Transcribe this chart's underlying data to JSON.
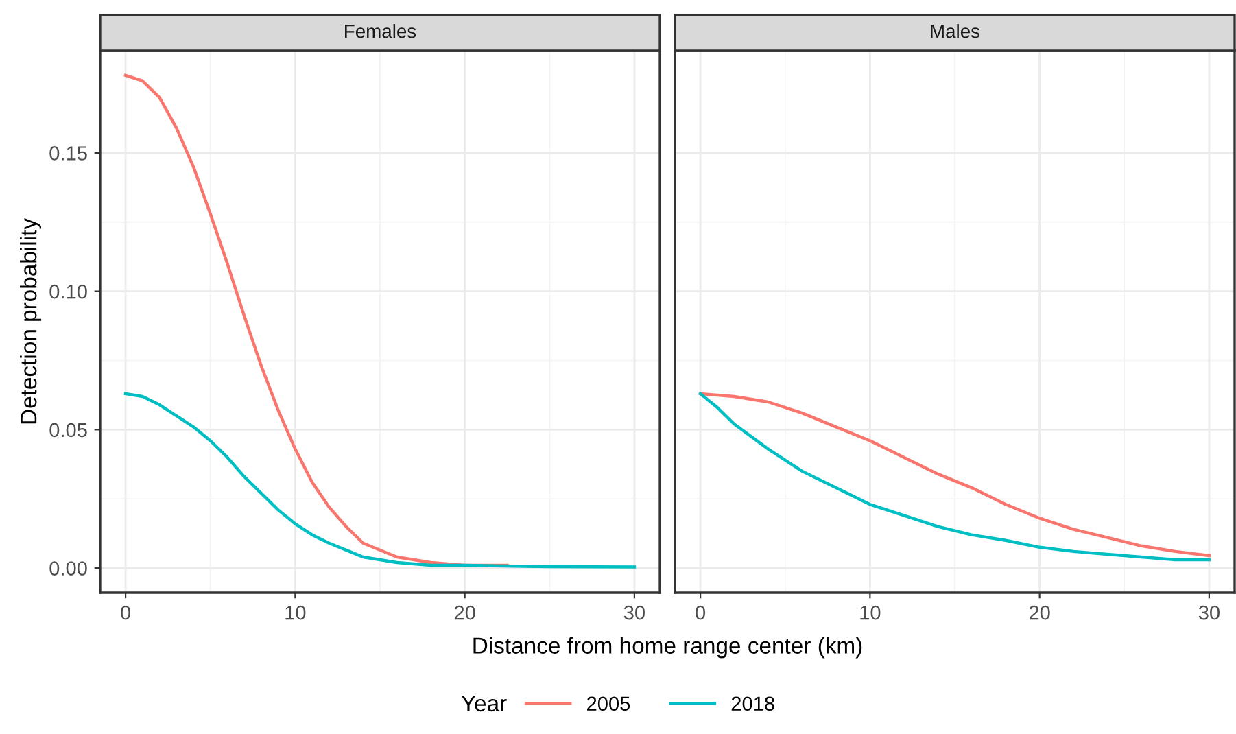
{
  "chart_data": [
    {
      "type": "line",
      "title": "Females",
      "ylabel": "Detection probability",
      "xlabel": "Distance from home range center (km)",
      "legend_title": "Year",
      "legend": "bottom",
      "grid": true,
      "xlim": [
        -1.5,
        31.5
      ],
      "xticks": [
        0,
        10,
        20,
        30
      ],
      "ylim": [
        -0.0089,
        0.1869
      ],
      "yticks": [
        {
          "value": 0,
          "label": "0.00"
        },
        0.05,
        {
          "value": 0.1,
          "label": "0.10"
        },
        0.15
      ],
      "series": [
        {
          "name": "2005",
          "color": "#f8766d",
          "x": [
            0,
            1,
            2,
            3,
            4,
            5,
            6,
            7,
            8,
            9,
            10,
            11,
            12,
            13,
            14,
            16,
            18,
            20,
            22.5
          ],
          "values": [
            0.178,
            0.176,
            0.17,
            0.159,
            0.145,
            0.128,
            0.11,
            0.091,
            0.073,
            0.057,
            0.043,
            0.031,
            0.022,
            0.015,
            0.009,
            0.004,
            0.002,
            0.001,
            0.001
          ]
        },
        {
          "name": "2018",
          "color": "#00bfc4",
          "x": [
            0,
            1,
            2,
            3,
            4,
            5,
            6,
            7,
            8,
            9,
            10,
            11,
            12,
            14,
            16,
            18,
            20,
            25,
            30
          ],
          "values": [
            0.063,
            0.062,
            0.059,
            0.055,
            0.051,
            0.046,
            0.04,
            0.033,
            0.027,
            0.021,
            0.016,
            0.012,
            0.009,
            0.004,
            0.002,
            0.001,
            0.001,
            0.0005,
            0.0004
          ]
        }
      ]
    },
    {
      "type": "line",
      "title": "Males",
      "tick_labels": "x",
      "grid": true,
      "xlim": [
        -1.5,
        31.5
      ],
      "xticks": [
        0,
        10,
        20,
        30
      ],
      "ylim": [
        -0.0089,
        0.1869
      ],
      "yticks": [
        0,
        0.05,
        0.1,
        0.15
      ],
      "series": [
        {
          "name": "2005",
          "color": "#f8766d",
          "x": [
            0,
            2,
            4,
            6,
            8,
            10,
            12,
            14,
            16,
            18,
            20,
            22,
            24,
            26,
            28,
            30
          ],
          "values": [
            0.063,
            0.062,
            0.06,
            0.056,
            0.051,
            0.046,
            0.04,
            0.034,
            0.029,
            0.023,
            0.018,
            0.014,
            0.011,
            0.008,
            0.006,
            0.0045
          ]
        },
        {
          "name": "2018",
          "color": "#00bfc4",
          "x": [
            0,
            1,
            2,
            4,
            6,
            8,
            10,
            12,
            14,
            16,
            18,
            20,
            22,
            24,
            26,
            28,
            30
          ],
          "values": [
            0.063,
            0.058,
            0.052,
            0.043,
            0.035,
            0.029,
            0.023,
            0.019,
            0.015,
            0.012,
            0.01,
            0.0075,
            0.006,
            0.005,
            0.004,
            0.003,
            0.003
          ]
        }
      ]
    }
  ]
}
